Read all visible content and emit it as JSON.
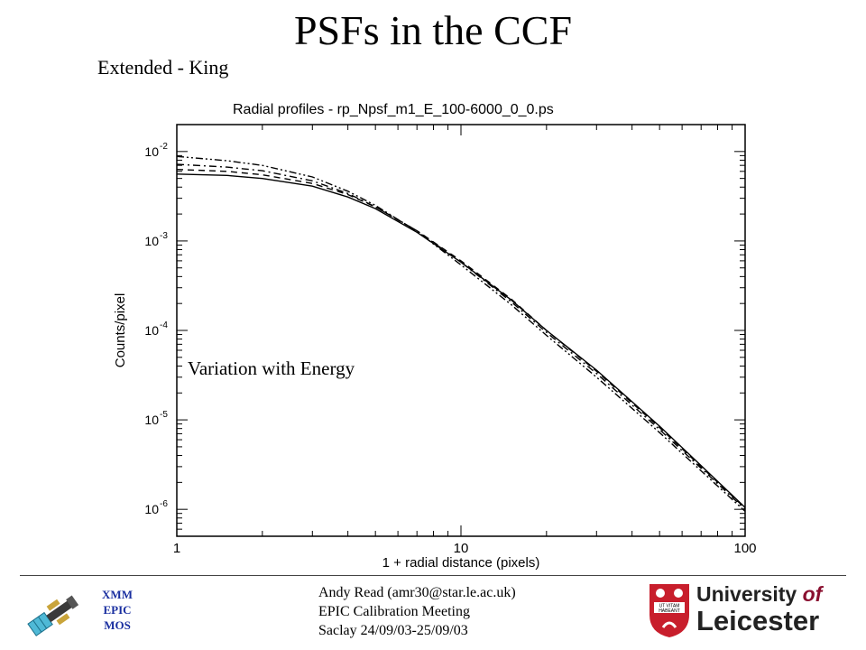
{
  "slide": {
    "title": "PSFs in the CCF",
    "subtitle": "Extended - King",
    "overlay_label": "Variation with Energy"
  },
  "footer": {
    "left_label": [
      "XMM",
      "EPIC",
      "MOS"
    ],
    "info_lines": [
      "Andy Read (amr30@star.le.ac.uk)",
      "EPIC Calibration Meeting",
      "Saclay 24/09/03-25/09/03"
    ],
    "university": {
      "line1": "University",
      "line1_italic": "of",
      "line2": "Leicester",
      "shield_motto": [
        "UT VITAM",
        "HABEANT"
      ],
      "colors": {
        "shield": "#c81e2c",
        "text": "#222222",
        "accent": "#8a1030"
      }
    }
  },
  "chart_data": {
    "type": "line",
    "title": "Radial profiles  -  rp_Npsf_m1_E_100-6000_0_0.ps",
    "xlabel": "1 + radial distance (pixels)",
    "ylabel": "Counts/pixel",
    "xscale": "log",
    "yscale": "log",
    "xlim": [
      1,
      100
    ],
    "ylim": [
      5e-07,
      0.02
    ],
    "x_ticks": [
      1,
      10,
      100
    ],
    "x_tick_labels": [
      "1",
      "10",
      "100"
    ],
    "y_ticks": [
      1e-06,
      1e-05,
      0.0001,
      0.001,
      0.01
    ],
    "y_tick_labels": [
      {
        "base": "10",
        "exp": "-6"
      },
      {
        "base": "10",
        "exp": "-5"
      },
      {
        "base": "10",
        "exp": "-4"
      },
      {
        "base": "10",
        "exp": "-3"
      },
      {
        "base": "10",
        "exp": "-2"
      }
    ],
    "series": [
      {
        "style": "solid",
        "x": [
          1,
          1.5,
          2,
          3,
          4,
          5,
          7,
          10,
          15,
          20,
          30,
          50,
          100
        ],
        "y": [
          0.0056,
          0.0054,
          0.005,
          0.0041,
          0.0031,
          0.0023,
          0.00125,
          0.00058,
          0.00022,
          0.0001,
          3.6e-05,
          8.5e-06,
          1.05e-06
        ]
      },
      {
        "style": "dashed",
        "x": [
          1,
          1.5,
          2,
          3,
          4,
          5,
          7,
          10,
          15,
          20,
          30,
          50,
          100
        ],
        "y": [
          0.0063,
          0.006,
          0.0055,
          0.0044,
          0.0033,
          0.0024,
          0.0013,
          0.0006,
          0.000225,
          0.0001,
          3.5e-05,
          8.2e-06,
          1.03e-06
        ]
      },
      {
        "style": "dash-dot",
        "x": [
          1,
          1.5,
          2,
          3,
          4,
          5,
          7,
          10,
          15,
          20,
          30,
          50,
          100
        ],
        "y": [
          0.0072,
          0.0067,
          0.0061,
          0.0047,
          0.0034,
          0.0024,
          0.0013,
          0.00058,
          0.00021,
          9.5e-05,
          3.3e-05,
          7.8e-06,
          1e-06
        ]
      },
      {
        "style": "dash-dot-dot",
        "x": [
          1,
          1.5,
          2,
          3,
          4,
          5,
          7,
          10,
          15,
          20,
          30,
          50,
          100
        ],
        "y": [
          0.0088,
          0.0079,
          0.007,
          0.0052,
          0.0036,
          0.0025,
          0.00128,
          0.00054,
          0.000195,
          8.8e-05,
          3e-05,
          7.2e-06,
          9.5e-07
        ]
      }
    ],
    "colors": {
      "line": "#000000",
      "background": "#ffffff"
    }
  }
}
